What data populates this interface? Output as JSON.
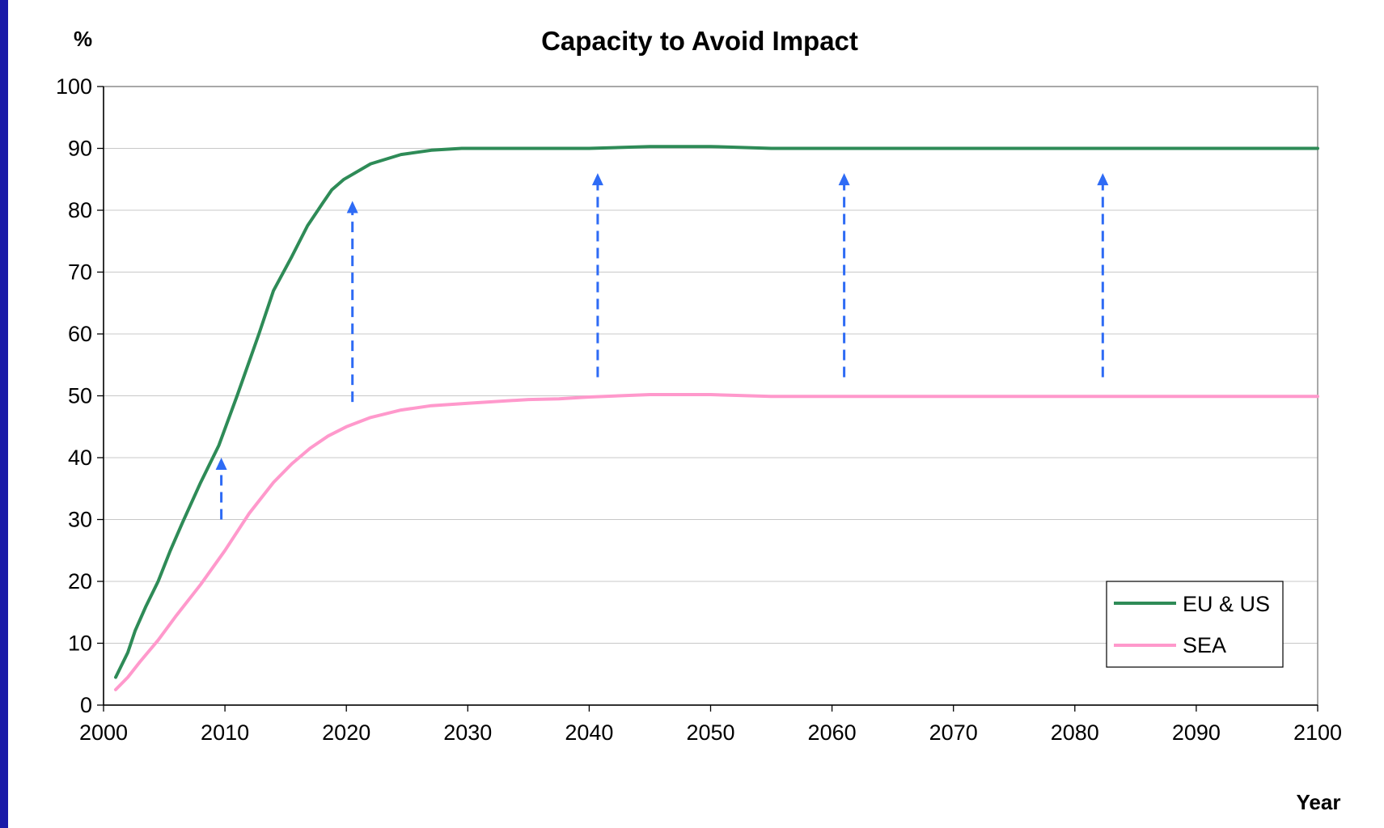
{
  "chart_data": {
    "type": "line",
    "title": "Capacity to Avoid Impact",
    "ylabel": "%",
    "xlabel": "Year",
    "xlim": [
      2000,
      2100
    ],
    "ylim": [
      0,
      100
    ],
    "xticks": [
      2000,
      2010,
      2020,
      2030,
      2040,
      2050,
      2060,
      2070,
      2080,
      2090,
      2100
    ],
    "yticks": [
      0,
      10,
      20,
      30,
      40,
      50,
      60,
      70,
      80,
      90,
      100
    ],
    "grid": true,
    "legend_position": "bottom-right",
    "series": [
      {
        "name": "EU & US",
        "color": "#2e8b57",
        "points": [
          [
            2001,
            4.5
          ],
          [
            2002,
            8.5
          ],
          [
            2002.6,
            12
          ],
          [
            2003.5,
            16
          ],
          [
            2004.5,
            20
          ],
          [
            2005.5,
            25
          ],
          [
            2006.5,
            29.5
          ],
          [
            2008,
            36
          ],
          [
            2009.5,
            42
          ],
          [
            2011,
            50
          ],
          [
            2012.8,
            60
          ],
          [
            2014,
            67
          ],
          [
            2015.5,
            72.5
          ],
          [
            2016.8,
            77.5
          ],
          [
            2018,
            81
          ],
          [
            2018.8,
            83.3
          ],
          [
            2019.8,
            85
          ],
          [
            2022,
            87.5
          ],
          [
            2024.5,
            89
          ],
          [
            2027,
            89.7
          ],
          [
            2029.5,
            90
          ],
          [
            2035,
            90
          ],
          [
            2040,
            90
          ],
          [
            2045,
            90.3
          ],
          [
            2050,
            90.3
          ],
          [
            2055,
            90
          ],
          [
            2060,
            90
          ],
          [
            2070,
            90
          ],
          [
            2080,
            90
          ],
          [
            2090,
            90
          ],
          [
            2100,
            90
          ]
        ]
      },
      {
        "name": "SEA",
        "color": "#ff99cc",
        "points": [
          [
            2001,
            2.5
          ],
          [
            2002,
            4.5
          ],
          [
            2003,
            7
          ],
          [
            2004.5,
            10.5
          ],
          [
            2006,
            14.5
          ],
          [
            2008,
            19.5
          ],
          [
            2010,
            25
          ],
          [
            2012,
            31
          ],
          [
            2014,
            36
          ],
          [
            2015.5,
            39
          ],
          [
            2017,
            41.5
          ],
          [
            2018.5,
            43.5
          ],
          [
            2020,
            45
          ],
          [
            2022,
            46.5
          ],
          [
            2024.5,
            47.7
          ],
          [
            2027,
            48.4
          ],
          [
            2030,
            48.8
          ],
          [
            2035,
            49.4
          ],
          [
            2037.5,
            49.5
          ],
          [
            2040,
            49.8
          ],
          [
            2045,
            50.2
          ],
          [
            2050,
            50.2
          ],
          [
            2055,
            49.9
          ],
          [
            2060,
            49.9
          ],
          [
            2070,
            49.9
          ],
          [
            2080,
            49.9
          ],
          [
            2090,
            49.9
          ],
          [
            2100,
            49.9
          ]
        ]
      }
    ],
    "arrows": [
      {
        "x": 2009.7,
        "from": 30,
        "to": 40
      },
      {
        "x": 2020.5,
        "from": 49,
        "to": 81.5
      },
      {
        "x": 2040.7,
        "from": 53,
        "to": 86
      },
      {
        "x": 2061,
        "from": 53,
        "to": 86
      },
      {
        "x": 2082.3,
        "from": 53,
        "to": 86
      }
    ],
    "arrow_color": "#2e6bf5"
  }
}
